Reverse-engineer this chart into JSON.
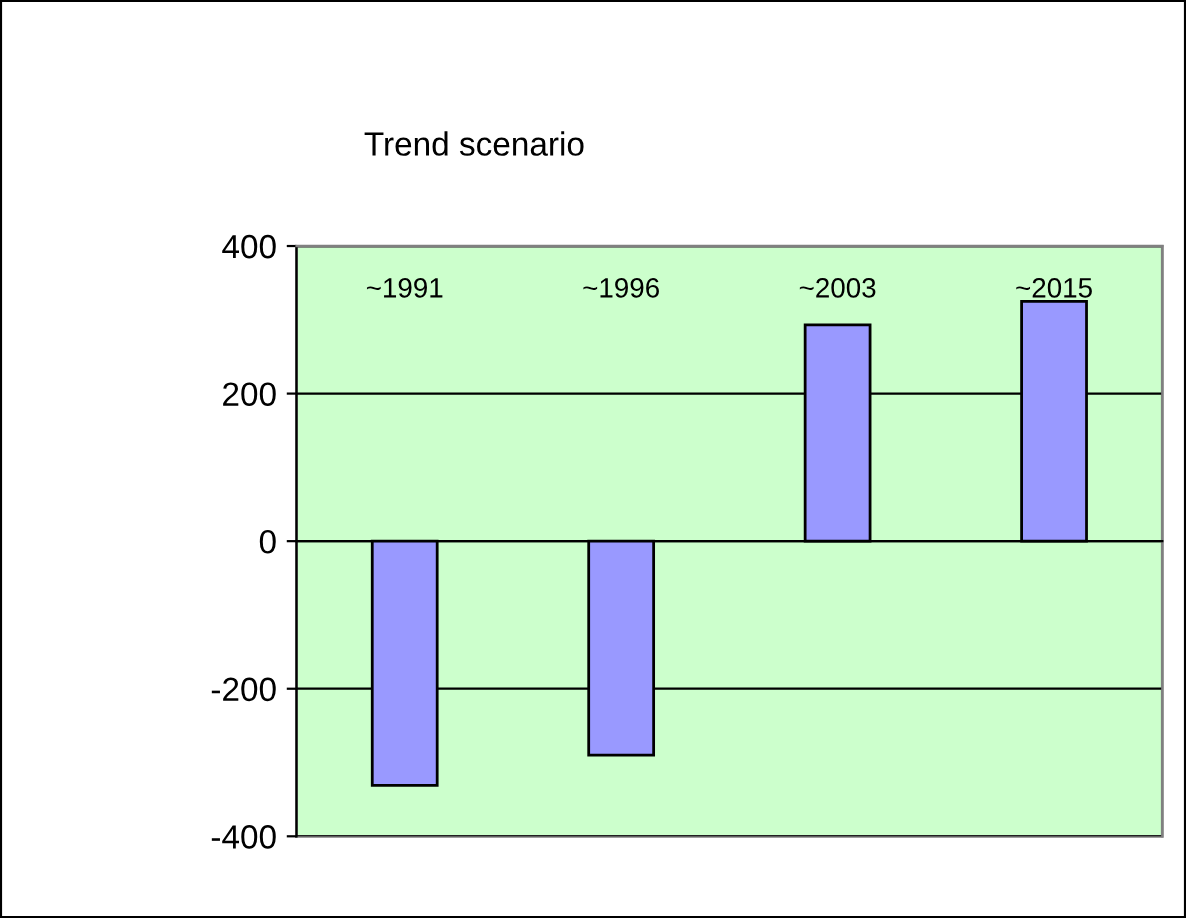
{
  "chart_data": {
    "type": "bar",
    "title": "Trend scenario",
    "categories": [
      "~1991",
      "~1996",
      "~2003",
      "~2015"
    ],
    "series": [
      {
        "color": "#9999ff",
        "values": [
          -331,
          -290,
          293,
          325
        ]
      }
    ],
    "ylim": [
      -400,
      400
    ],
    "yticks": [
      -400,
      -200,
      0,
      200,
      400
    ],
    "grid": "y"
  }
}
